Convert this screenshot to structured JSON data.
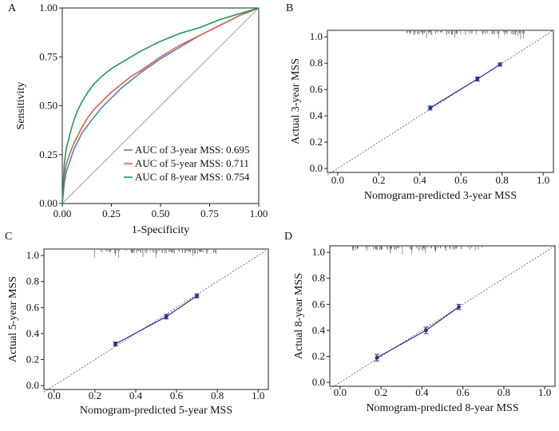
{
  "chart_data": [
    {
      "panel": "A",
      "type": "line",
      "xlabel": "1-Specificity",
      "ylabel": "Sensitivity",
      "xlim": [
        0,
        1
      ],
      "ylim": [
        0,
        1
      ],
      "xticks": [
        "0.00",
        "0.25",
        "0.50",
        "0.75",
        "1.00"
      ],
      "yticks": [
        "0.00",
        "0.25",
        "0.50",
        "0.75",
        "1.00"
      ],
      "reference_line": "diagonal",
      "legend_position": "bottom-right",
      "series": [
        {
          "name": "AUC of 3-year MSS: 0.695",
          "color": "#4a86c8",
          "x": [
            0,
            0.01,
            0.02,
            0.04,
            0.06,
            0.08,
            0.1,
            0.13,
            0.16,
            0.2,
            0.25,
            0.3,
            0.35,
            0.4,
            0.5,
            0.6,
            0.7,
            0.8,
            0.9,
            1.0
          ],
          "y": [
            0,
            0.1,
            0.16,
            0.22,
            0.28,
            0.32,
            0.36,
            0.4,
            0.44,
            0.49,
            0.54,
            0.59,
            0.63,
            0.67,
            0.74,
            0.8,
            0.86,
            0.91,
            0.96,
            1.0
          ]
        },
        {
          "name": "AUC of 5-year MSS: 0.711",
          "color": "#e0604a",
          "x": [
            0,
            0.01,
            0.02,
            0.04,
            0.06,
            0.08,
            0.1,
            0.13,
            0.16,
            0.2,
            0.25,
            0.3,
            0.35,
            0.4,
            0.5,
            0.6,
            0.7,
            0.8,
            0.9,
            1.0
          ],
          "y": [
            0,
            0.14,
            0.2,
            0.26,
            0.31,
            0.35,
            0.39,
            0.44,
            0.48,
            0.52,
            0.57,
            0.61,
            0.65,
            0.68,
            0.75,
            0.81,
            0.86,
            0.91,
            0.96,
            1.0
          ]
        },
        {
          "name": "AUC of 8-year MSS: 0.754",
          "color": "#1f9a5a",
          "x": [
            0,
            0.01,
            0.02,
            0.04,
            0.06,
            0.08,
            0.1,
            0.13,
            0.16,
            0.2,
            0.25,
            0.3,
            0.35,
            0.4,
            0.5,
            0.6,
            0.7,
            0.8,
            0.9,
            1.0
          ],
          "y": [
            0,
            0.2,
            0.28,
            0.36,
            0.43,
            0.48,
            0.52,
            0.57,
            0.61,
            0.65,
            0.69,
            0.72,
            0.75,
            0.78,
            0.83,
            0.87,
            0.9,
            0.94,
            0.97,
            1.0
          ]
        }
      ]
    },
    {
      "panel": "B",
      "type": "line",
      "xlabel": "Nomogram-predicted 3-year MSS",
      "ylabel": "Actual 3-year MSS",
      "xlim": [
        -0.05,
        1.05
      ],
      "ylim": [
        -0.03,
        1.05
      ],
      "xticks": [
        "0.0",
        "0.2",
        "0.4",
        "0.6",
        "0.8",
        "1.0"
      ],
      "yticks": [
        "0.0",
        "0.2",
        "0.4",
        "0.6",
        "0.8",
        "1.0"
      ],
      "reference_line": "diagonal-dotted",
      "rug_top": true,
      "series": [
        {
          "name": "",
          "color": "#2b2f8f",
          "x": [
            0.45,
            0.68,
            0.79
          ],
          "y": [
            0.46,
            0.68,
            0.79
          ],
          "err": [
            0.015,
            0.015,
            0.012
          ]
        }
      ]
    },
    {
      "panel": "C",
      "type": "line",
      "xlabel": "Nomogram-predicted 5-year MSS",
      "ylabel": "Actual 5-year MSS",
      "xlim": [
        -0.05,
        1.05
      ],
      "ylim": [
        -0.03,
        1.05
      ],
      "xticks": [
        "0.0",
        "0.2",
        "0.4",
        "0.6",
        "0.8",
        "1.0"
      ],
      "yticks": [
        "0.0",
        "0.2",
        "0.4",
        "0.6",
        "0.8",
        "1.0"
      ],
      "reference_line": "diagonal-dotted",
      "rug_top": true,
      "series": [
        {
          "name": "",
          "color": "#2b2f8f",
          "x": [
            0.3,
            0.55,
            0.7
          ],
          "y": [
            0.32,
            0.53,
            0.69
          ],
          "err": [
            0.015,
            0.018,
            0.015
          ]
        }
      ]
    },
    {
      "panel": "D",
      "type": "line",
      "xlabel": "Nomogram-predicted 8-year MSS",
      "ylabel": "Actual 8-year MSS",
      "xlim": [
        -0.05,
        1.05
      ],
      "ylim": [
        -0.03,
        1.05
      ],
      "xticks": [
        "0.0",
        "0.2",
        "0.4",
        "0.6",
        "0.8",
        "1.0"
      ],
      "yticks": [
        "0.0",
        "0.2",
        "0.4",
        "0.6",
        "0.8",
        "1.0"
      ],
      "reference_line": "diagonal-dotted",
      "rug_top": true,
      "series": [
        {
          "name": "",
          "color": "#2b2f8f",
          "x": [
            0.18,
            0.42,
            0.58
          ],
          "y": [
            0.19,
            0.4,
            0.58
          ],
          "err": [
            0.025,
            0.025,
            0.02
          ]
        }
      ]
    }
  ],
  "panel_letters": [
    "A",
    "B",
    "C",
    "D"
  ],
  "colors": {
    "axis": "#222222",
    "calibration": "#2b2f8f",
    "ideal_line": "#555555",
    "rug": "#666666"
  }
}
